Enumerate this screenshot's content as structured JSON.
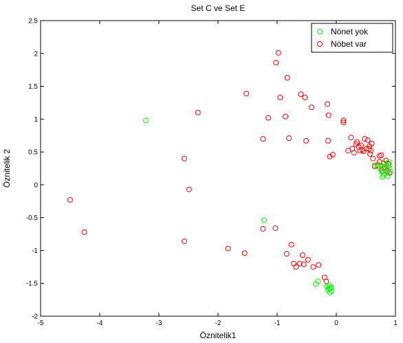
{
  "chart_data": {
    "type": "scatter",
    "title": "Set C ve Set E",
    "xlabel": "Öznitelik1",
    "ylabel": "Öznitelik 2",
    "xlim": [
      -5,
      1
    ],
    "ylim": [
      -2,
      2.5
    ],
    "xticks": [
      -5,
      -4,
      -3,
      -2,
      -1,
      0,
      1
    ],
    "xtick_labels": [
      "-5",
      "-4",
      "-3",
      "-2",
      "-1",
      "0",
      "1"
    ],
    "yticks": [
      -2,
      -1.5,
      -1,
      -0.5,
      0,
      0.5,
      1,
      1.5,
      2,
      2.5
    ],
    "ytick_labels": [
      "-2",
      "-1.5",
      "-1",
      "-0.5",
      "0",
      "0.5",
      "1",
      "1.5",
      "2",
      "2.5"
    ],
    "grid": false,
    "legend_position": "top-right",
    "marker": "open-circle",
    "series": [
      {
        "name": "Nönet yok",
        "color": "#00ff00",
        "points": [
          [
            -3.22,
            0.98
          ],
          [
            -1.22,
            -0.54
          ],
          [
            -0.35,
            -1.51
          ],
          [
            -0.31,
            -1.47
          ],
          [
            -0.16,
            -1.55
          ],
          [
            -0.12,
            -1.53
          ],
          [
            -0.1,
            -1.58
          ],
          [
            -0.14,
            -1.6
          ],
          [
            -0.08,
            -1.62
          ],
          [
            -0.11,
            -1.64
          ],
          [
            -0.09,
            -1.56
          ],
          [
            -0.13,
            -1.57
          ],
          [
            0.65,
            0.3
          ],
          [
            0.7,
            0.28
          ],
          [
            0.74,
            0.24
          ],
          [
            0.77,
            0.2
          ],
          [
            0.8,
            0.15
          ],
          [
            0.78,
            0.12
          ],
          [
            0.83,
            0.18
          ],
          [
            0.86,
            0.22
          ],
          [
            0.88,
            0.26
          ],
          [
            0.9,
            0.3
          ],
          [
            0.84,
            0.29
          ],
          [
            0.81,
            0.33
          ],
          [
            0.87,
            0.13
          ],
          [
            0.92,
            0.2
          ],
          [
            0.79,
            0.25
          ],
          [
            0.75,
            0.3
          ],
          [
            0.89,
            0.35
          ]
        ]
      },
      {
        "name": "Nöbet var",
        "color": "#ff0000",
        "points": [
          [
            -4.5,
            -0.23
          ],
          [
            -4.26,
            -0.72
          ],
          [
            -2.57,
            0.4
          ],
          [
            -2.49,
            -0.07
          ],
          [
            -2.57,
            -0.86
          ],
          [
            -2.34,
            1.1
          ],
          [
            -1.83,
            -0.97
          ],
          [
            -1.55,
            -1.04
          ],
          [
            -1.52,
            1.39
          ],
          [
            -1.24,
            0.7
          ],
          [
            -1.24,
            -0.67
          ],
          [
            -1.15,
            1.02
          ],
          [
            -1.02,
            1.86
          ],
          [
            -0.98,
            2.01
          ],
          [
            -0.95,
            1.33
          ],
          [
            -1.03,
            -0.66
          ],
          [
            -0.86,
            1.04
          ],
          [
            -0.83,
            1.63
          ],
          [
            -0.8,
            0.71
          ],
          [
            -0.84,
            -1.05
          ],
          [
            -0.76,
            -0.91
          ],
          [
            -0.72,
            -1.2
          ],
          [
            -0.68,
            -1.25
          ],
          [
            -0.62,
            -1.2
          ],
          [
            -0.6,
            1.38
          ],
          [
            -0.53,
            1.33
          ],
          [
            -0.51,
            0.67
          ],
          [
            -0.57,
            -1.07
          ],
          [
            -0.55,
            -1.21
          ],
          [
            -0.48,
            -1.14
          ],
          [
            -0.42,
            1.18
          ],
          [
            -0.39,
            -1.25
          ],
          [
            -0.3,
            -1.22
          ],
          [
            -0.2,
            -1.41
          ],
          [
            -0.17,
            -1.47
          ],
          [
            -0.15,
            1.23
          ],
          [
            -0.13,
            1.06
          ],
          [
            -0.14,
            0.67
          ],
          [
            -0.11,
            0.43
          ],
          [
            -0.06,
            0.46
          ],
          [
            0.12,
            0.98
          ],
          [
            0.12,
            0.95
          ],
          [
            0.2,
            0.52
          ],
          [
            0.25,
            0.72
          ],
          [
            0.27,
            0.55
          ],
          [
            0.3,
            0.49
          ],
          [
            0.33,
            0.62
          ],
          [
            0.35,
            0.65
          ],
          [
            0.38,
            0.58
          ],
          [
            0.4,
            0.52
          ],
          [
            0.44,
            0.53
          ],
          [
            0.46,
            0.51
          ],
          [
            0.48,
            0.7
          ],
          [
            0.51,
            0.55
          ],
          [
            0.53,
            0.68
          ],
          [
            0.55,
            0.55
          ],
          [
            0.57,
            0.47
          ],
          [
            0.6,
            0.63
          ],
          [
            0.62,
            0.4
          ],
          [
            0.65,
            0.28
          ],
          [
            0.7,
            0.3
          ],
          [
            0.73,
            0.44
          ],
          [
            0.76,
            0.45
          ],
          [
            0.73,
            0.35
          ],
          [
            0.77,
            0.22
          ],
          [
            0.8,
            0.33
          ],
          [
            0.84,
            0.37
          ],
          [
            0.88,
            0.32
          ],
          [
            0.86,
            0.21
          ],
          [
            0.9,
            0.18
          ],
          [
            0.82,
            0.25
          ],
          [
            0.56,
            0.59
          ],
          [
            0.58,
            0.52
          ],
          [
            0.42,
            0.6
          ]
        ]
      }
    ]
  }
}
